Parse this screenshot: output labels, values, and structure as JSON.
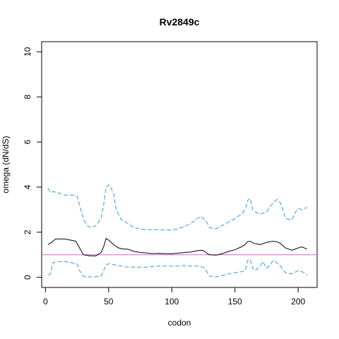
{
  "chart_data": {
    "type": "line",
    "title": "Rv2849c",
    "xlabel": "codon",
    "ylabel": "omega (dN/dS)",
    "xlim": [
      -3,
      215
    ],
    "ylim": [
      -0.45,
      10.45
    ],
    "x_ticks": [
      0,
      50,
      100,
      150,
      200
    ],
    "y_ticks": [
      0,
      2,
      4,
      6,
      8,
      10
    ],
    "grid": false,
    "reference_line": {
      "y": 1,
      "color": "#cc66cc"
    },
    "series": [
      {
        "style": "solid",
        "color": "#000000",
        "x": [
          2,
          5,
          8,
          15,
          20,
          24,
          26,
          28,
          30,
          35,
          40,
          44,
          46,
          48,
          50,
          52,
          55,
          58,
          62,
          65,
          70,
          75,
          80,
          85,
          90,
          95,
          100,
          105,
          110,
          115,
          120,
          124,
          126,
          128,
          130,
          135,
          140,
          145,
          150,
          155,
          158,
          160,
          162,
          165,
          170,
          175,
          180,
          183,
          186,
          190,
          195,
          200,
          203,
          207
        ],
        "y": [
          1.45,
          1.55,
          1.7,
          1.7,
          1.65,
          1.6,
          1.4,
          1.2,
          1.0,
          0.95,
          0.95,
          1.1,
          1.35,
          1.72,
          1.65,
          1.55,
          1.4,
          1.3,
          1.25,
          1.25,
          1.15,
          1.1,
          1.08,
          1.05,
          1.06,
          1.05,
          1.05,
          1.07,
          1.1,
          1.12,
          1.18,
          1.2,
          1.15,
          1.05,
          1.0,
          0.98,
          1.05,
          1.15,
          1.22,
          1.35,
          1.45,
          1.58,
          1.6,
          1.5,
          1.45,
          1.55,
          1.6,
          1.58,
          1.5,
          1.3,
          1.2,
          1.3,
          1.35,
          1.25
        ]
      },
      {
        "style": "dashed",
        "color": "#3399dd",
        "x": [
          2,
          4,
          6,
          10,
          15,
          20,
          25,
          27,
          30,
          33,
          36,
          40,
          44,
          46,
          48,
          50,
          52,
          54,
          56,
          60,
          65,
          70,
          75,
          80,
          85,
          90,
          95,
          100,
          105,
          110,
          115,
          118,
          120,
          123,
          125,
          127,
          130,
          135,
          140,
          145,
          150,
          155,
          158,
          160,
          162,
          164,
          166,
          170,
          175,
          180,
          183,
          186,
          190,
          195,
          198,
          200,
          203,
          207
        ],
        "y": [
          3.95,
          3.75,
          3.8,
          3.75,
          3.65,
          3.65,
          3.6,
          3.2,
          2.6,
          2.3,
          2.2,
          2.3,
          2.6,
          3.2,
          4.0,
          4.1,
          3.95,
          3.7,
          3.0,
          2.55,
          2.4,
          2.2,
          2.15,
          2.1,
          2.12,
          2.1,
          2.1,
          2.1,
          2.15,
          2.25,
          2.4,
          2.5,
          2.6,
          2.7,
          2.6,
          2.5,
          2.2,
          2.15,
          2.3,
          2.45,
          2.6,
          2.8,
          3.0,
          3.4,
          3.5,
          3.0,
          2.9,
          2.8,
          2.9,
          3.3,
          3.45,
          3.3,
          2.6,
          2.55,
          2.9,
          3.05,
          3.0,
          3.1
        ]
      },
      {
        "style": "dashed",
        "color": "#3399dd",
        "x": [
          2,
          4,
          6,
          10,
          15,
          20,
          25,
          27,
          30,
          33,
          36,
          40,
          44,
          46,
          48,
          50,
          55,
          60,
          65,
          70,
          75,
          80,
          85,
          90,
          95,
          100,
          105,
          110,
          115,
          120,
          125,
          127,
          130,
          135,
          140,
          145,
          150,
          155,
          158,
          160,
          162,
          164,
          166,
          170,
          172,
          175,
          178,
          180,
          183,
          186,
          190,
          195,
          200,
          203,
          207
        ],
        "y": [
          0.1,
          0.15,
          0.65,
          0.7,
          0.7,
          0.65,
          0.6,
          0.3,
          0.05,
          0.02,
          0.02,
          0.03,
          0.05,
          0.3,
          0.55,
          0.6,
          0.55,
          0.5,
          0.45,
          0.45,
          0.45,
          0.45,
          0.48,
          0.5,
          0.5,
          0.5,
          0.5,
          0.52,
          0.5,
          0.5,
          0.45,
          0.3,
          0.05,
          0.02,
          0.08,
          0.15,
          0.2,
          0.25,
          0.3,
          0.75,
          0.8,
          0.4,
          0.3,
          0.5,
          0.7,
          0.4,
          0.55,
          0.75,
          0.65,
          0.5,
          0.2,
          0.15,
          0.3,
          0.25,
          0.1
        ]
      }
    ]
  }
}
